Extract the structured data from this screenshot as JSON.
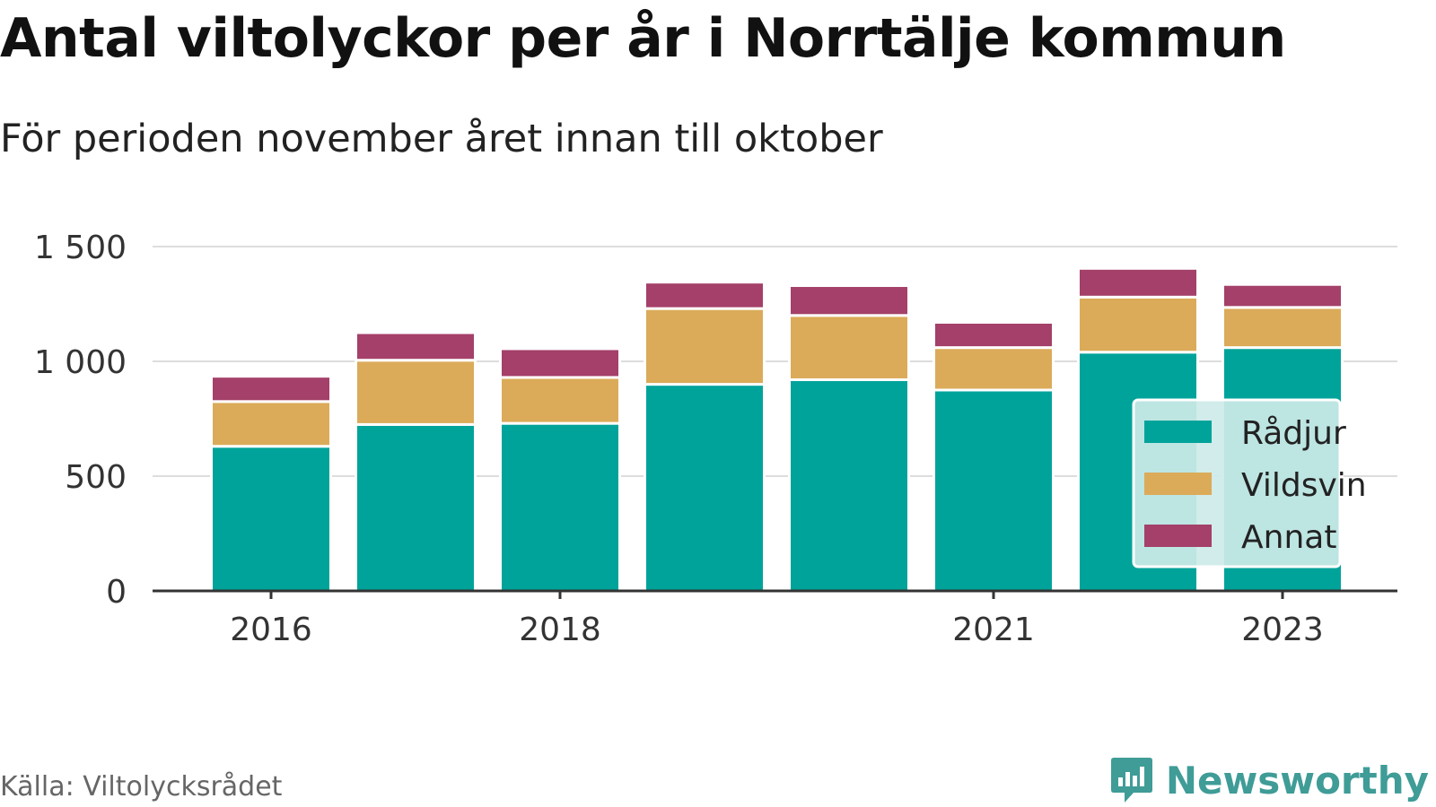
{
  "title": "Antal viltolyckor per år i Norrtälje kommun",
  "subtitle": "För perioden november året innan till oktober",
  "source": "Källa: Viltolycksrådet",
  "brand": "Newsworthy",
  "colors": {
    "radjur": "#00a39a",
    "vildsvin": "#dbab5a",
    "annat": "#a44069",
    "grid": "#dddddd",
    "axis": "#333333",
    "legend_bg": "#cdeae8",
    "brand": "#3f9c97"
  },
  "chart_data": {
    "type": "bar",
    "stacked": true,
    "categories": [
      "2016",
      "2017",
      "2018",
      "2019",
      "2020",
      "2021",
      "2022",
      "2023"
    ],
    "x_tick_labels": [
      "2016",
      "",
      "2018",
      "",
      "",
      "2021",
      "",
      "2023"
    ],
    "series": [
      {
        "name": "Rådjur",
        "key": "radjur",
        "values": [
          630,
          725,
          730,
          900,
          920,
          875,
          1040,
          1060
        ]
      },
      {
        "name": "Vildsvin",
        "key": "vildsvin",
        "values": [
          195,
          280,
          200,
          330,
          280,
          185,
          240,
          175
        ]
      },
      {
        "name": "Annat",
        "key": "annat",
        "values": [
          110,
          120,
          125,
          115,
          130,
          110,
          125,
          100
        ]
      }
    ],
    "ylim": [
      0,
      1500
    ],
    "yticks": [
      0,
      500,
      1000,
      1500
    ],
    "ytick_labels": [
      "0",
      "500",
      "1 000",
      "1 500"
    ],
    "grid": true,
    "legend_position": "bottom-right"
  }
}
